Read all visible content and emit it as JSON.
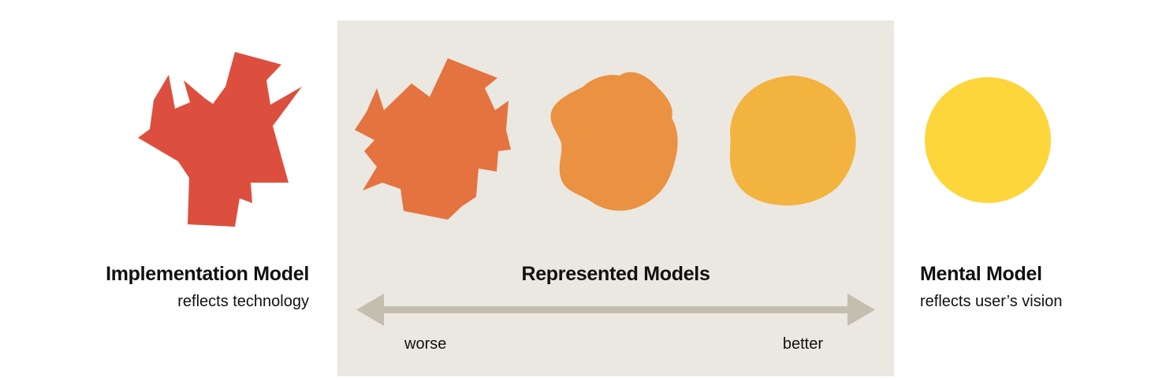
{
  "colors": {
    "panel": "#ebe7e1",
    "implementation": "#dc4f3e",
    "represented_worse": "#e47340",
    "represented_mid": "#eb9142",
    "represented_better": "#f2b43f",
    "mental": "#fdd63c",
    "arrow": "#c4beb1"
  },
  "implementation": {
    "title": "Implementation Model",
    "subtitle": "reflects technology",
    "shape_icon": "jagged-spiky-shape"
  },
  "represented": {
    "title": "Represented Models",
    "worse_label": "worse",
    "better_label": "better",
    "arrow_icon": "double-headed-arrow"
  },
  "mental": {
    "title": "Mental Model",
    "subtitle": "reflects user’s vision",
    "shape_icon": "circle-shape"
  }
}
